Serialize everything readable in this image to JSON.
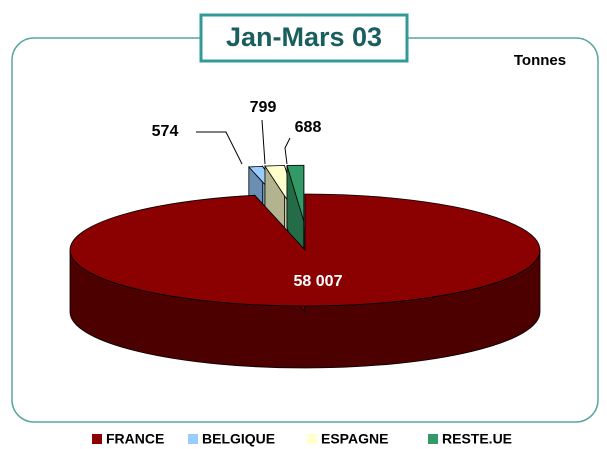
{
  "chart_data": {
    "type": "pie",
    "title": "Jan-Mars 03",
    "unit_label": "Tonnes",
    "categories": [
      "FRANCE",
      "BELGIQUE",
      "ESPAGNE",
      "RESTE.UE"
    ],
    "values": [
      58007,
      574,
      799,
      688
    ],
    "value_labels": [
      "58 007",
      "574",
      "799",
      "688"
    ],
    "colors": [
      "#8b0000",
      "#99ccff",
      "#ffffcc",
      "#339966"
    ],
    "legend": "bottom"
  }
}
